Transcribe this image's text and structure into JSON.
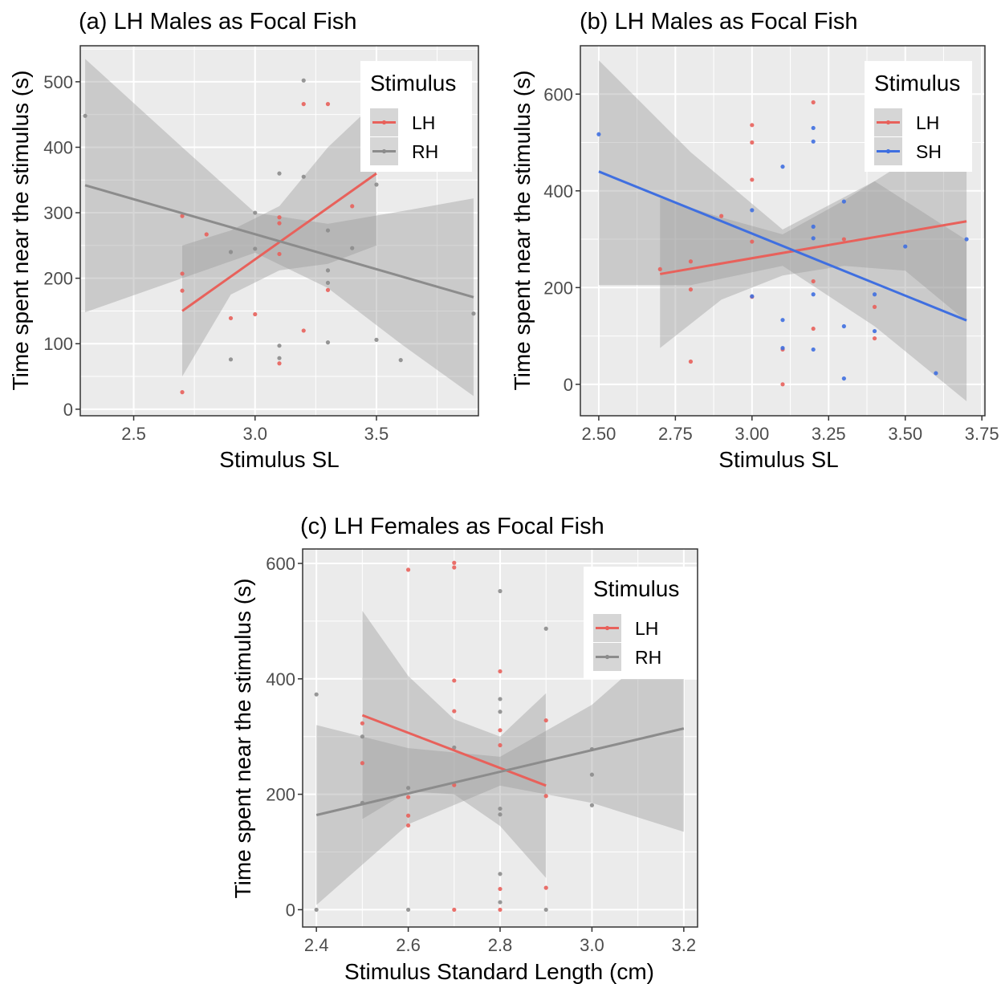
{
  "colors": {
    "LH": "#e8615b",
    "RH": "#8c8c8c",
    "SH": "#3f6fe0",
    "ribbon": "#999999",
    "panel": "#ebebeb"
  },
  "chart_data": [
    {
      "type": "scatter",
      "title": "(a) LH Males as Focal Fish",
      "xlabel": "Stimulus SL",
      "ylabel": "Time spent near the stimulus (s)",
      "xlim": [
        2.28,
        3.92
      ],
      "ylim": [
        -10,
        555
      ],
      "xticks": [
        2.5,
        3.0,
        3.5
      ],
      "xtick_labels": [
        "2.5",
        "3.0",
        "3.5"
      ],
      "yticks": [
        0,
        100,
        200,
        300,
        400,
        500
      ],
      "ytick_labels": [
        "0",
        "100",
        "200",
        "300",
        "400",
        "500"
      ],
      "legend": {
        "title": "Stimulus",
        "position": "top-right",
        "entries": [
          "LH",
          "RH"
        ]
      },
      "series": [
        {
          "name": "LH",
          "color_key": "LH",
          "points": [
            [
              2.7,
              295
            ],
            [
              2.7,
              207
            ],
            [
              2.7,
              181
            ],
            [
              2.7,
              26
            ],
            [
              2.8,
              267
            ],
            [
              2.9,
              139
            ],
            [
              3.0,
              145
            ],
            [
              3.1,
              293
            ],
            [
              3.1,
              284
            ],
            [
              3.1,
              237
            ],
            [
              3.1,
              70
            ],
            [
              3.2,
              466
            ],
            [
              3.2,
              120
            ],
            [
              3.3,
              466
            ],
            [
              3.3,
              182
            ],
            [
              3.4,
              310
            ]
          ],
          "fit": [
            [
              2.7,
              150
            ],
            [
              3.5,
              360
            ]
          ],
          "ribbon_upper": [
            [
              2.7,
              250
            ],
            [
              2.9,
              273
            ],
            [
              3.1,
              310
            ],
            [
              3.3,
              400
            ],
            [
              3.5,
              470
            ]
          ],
          "ribbon_lower": [
            [
              2.7,
              50
            ],
            [
              2.9,
              175
            ],
            [
              3.1,
              212
            ],
            [
              3.3,
              222
            ],
            [
              3.5,
              250
            ]
          ]
        },
        {
          "name": "RH",
          "color_key": "RH",
          "points": [
            [
              2.3,
              448
            ],
            [
              2.9,
              240
            ],
            [
              2.9,
              76
            ],
            [
              3.0,
              300
            ],
            [
              3.0,
              245
            ],
            [
              3.1,
              360
            ],
            [
              3.1,
              97
            ],
            [
              3.1,
              78
            ],
            [
              3.2,
              502
            ],
            [
              3.2,
              355
            ],
            [
              3.3,
              273
            ],
            [
              3.3,
              212
            ],
            [
              3.3,
              193
            ],
            [
              3.3,
              102
            ],
            [
              3.4,
              246
            ],
            [
              3.5,
              343
            ],
            [
              3.5,
              106
            ],
            [
              3.6,
              75
            ],
            [
              3.9,
              146
            ]
          ],
          "fit": [
            [
              2.3,
              342
            ],
            [
              3.9,
              171
            ]
          ],
          "ribbon_upper": [
            [
              2.3,
              535
            ],
            [
              2.7,
              400
            ],
            [
              3.0,
              300
            ],
            [
              3.3,
              283
            ],
            [
              3.6,
              302
            ],
            [
              3.9,
              322
            ]
          ],
          "ribbon_lower": [
            [
              2.3,
              148
            ],
            [
              2.7,
              200
            ],
            [
              3.0,
              239
            ],
            [
              3.3,
              185
            ],
            [
              3.6,
              100
            ],
            [
              3.9,
              20
            ]
          ]
        }
      ]
    },
    {
      "type": "scatter",
      "title": "(b) LH Males as Focal Fish",
      "xlabel": "Stimulus SL",
      "ylabel": "Time spent near the stimulus (s)",
      "xlim": [
        2.44,
        3.76
      ],
      "ylim": [
        -65,
        700
      ],
      "xticks": [
        2.5,
        2.75,
        3.0,
        3.25,
        3.5,
        3.75
      ],
      "xtick_labels": [
        "2.50",
        "2.75",
        "3.00",
        "3.25",
        "3.50",
        "3.75"
      ],
      "yticks": [
        0,
        200,
        400,
        600
      ],
      "ytick_labels": [
        "0",
        "200",
        "400",
        "600"
      ],
      "legend": {
        "title": "Stimulus",
        "position": "top-right",
        "entries": [
          "LH",
          "SH"
        ]
      },
      "series": [
        {
          "name": "LH",
          "color_key": "LH",
          "points": [
            [
              2.7,
              238
            ],
            [
              2.8,
              254
            ],
            [
              2.8,
              196
            ],
            [
              2.8,
              47
            ],
            [
              2.9,
              348
            ],
            [
              3.0,
              536
            ],
            [
              3.0,
              500
            ],
            [
              3.0,
              423
            ],
            [
              3.0,
              295
            ],
            [
              3.0,
              181
            ],
            [
              3.1,
              72
            ],
            [
              3.1,
              0
            ],
            [
              3.2,
              583
            ],
            [
              3.2,
              213
            ],
            [
              3.2,
              115
            ],
            [
              3.3,
              300
            ],
            [
              3.4,
              160
            ],
            [
              3.4,
              95
            ]
          ],
          "fit": [
            [
              2.7,
              228
            ],
            [
              3.7,
              337
            ]
          ],
          "ribbon_upper": [
            [
              2.7,
              385
            ],
            [
              2.9,
              345
            ],
            [
              3.1,
              310
            ],
            [
              3.3,
              380
            ],
            [
              3.5,
              460
            ],
            [
              3.7,
              540
            ]
          ],
          "ribbon_lower": [
            [
              2.7,
              75
            ],
            [
              2.9,
              175
            ],
            [
              3.1,
              225
            ],
            [
              3.3,
              245
            ],
            [
              3.5,
              235
            ],
            [
              3.7,
              130
            ]
          ]
        },
        {
          "name": "SH",
          "color_key": "SH",
          "points": [
            [
              2.5,
              517
            ],
            [
              3.0,
              360
            ],
            [
              3.0,
              182
            ],
            [
              3.1,
              450
            ],
            [
              3.1,
              133
            ],
            [
              3.1,
              75
            ],
            [
              3.2,
              530
            ],
            [
              3.2,
              502
            ],
            [
              3.2,
              326
            ],
            [
              3.2,
              302
            ],
            [
              3.2,
              186
            ],
            [
              3.2,
              72
            ],
            [
              3.3,
              378
            ],
            [
              3.3,
              120
            ],
            [
              3.3,
              12
            ],
            [
              3.4,
              186
            ],
            [
              3.4,
              110
            ],
            [
              3.5,
              285
            ],
            [
              3.6,
              23
            ],
            [
              3.7,
              300
            ]
          ],
          "fit": [
            [
              2.5,
              440
            ],
            [
              3.7,
              132
            ]
          ],
          "ribbon_upper": [
            [
              2.5,
              670
            ],
            [
              2.8,
              480
            ],
            [
              3.1,
              320
            ],
            [
              3.4,
              420
            ],
            [
              3.7,
              298
            ]
          ],
          "ribbon_lower": [
            [
              2.5,
              205
            ],
            [
              2.8,
              205
            ],
            [
              3.1,
              245
            ],
            [
              3.4,
              120
            ],
            [
              3.7,
              -35
            ]
          ]
        }
      ]
    },
    {
      "type": "scatter",
      "title": "(c) LH Females as Focal Fish",
      "xlabel": "Stimulus Standard Length (cm)",
      "ylabel": "Time spent near the stimulus (s)",
      "xlim": [
        2.37,
        3.23
      ],
      "ylim": [
        -30,
        625
      ],
      "xticks": [
        2.4,
        2.6,
        2.8,
        3.0,
        3.2
      ],
      "xtick_labels": [
        "2.4",
        "2.6",
        "2.8",
        "3.0",
        "3.2"
      ],
      "yticks": [
        0,
        200,
        400,
        600
      ],
      "ytick_labels": [
        "0",
        "200",
        "400",
        "600"
      ],
      "legend": {
        "title": "Stimulus",
        "position": "top-right",
        "entries": [
          "LH",
          "RH"
        ]
      },
      "series": [
        {
          "name": "LH",
          "color_key": "LH",
          "points": [
            [
              2.5,
              323
            ],
            [
              2.5,
              254
            ],
            [
              2.6,
              589
            ],
            [
              2.6,
              195
            ],
            [
              2.6,
              163
            ],
            [
              2.6,
              146
            ],
            [
              2.7,
              601
            ],
            [
              2.7,
              593
            ],
            [
              2.7,
              397
            ],
            [
              2.7,
              344
            ],
            [
              2.7,
              216
            ],
            [
              2.7,
              0
            ],
            [
              2.8,
              413
            ],
            [
              2.8,
              311
            ],
            [
              2.8,
              285
            ],
            [
              2.8,
              36
            ],
            [
              2.8,
              0
            ],
            [
              2.9,
              328
            ],
            [
              2.9,
              197
            ],
            [
              2.9,
              38
            ]
          ],
          "fit": [
            [
              2.5,
              337
            ],
            [
              2.9,
              215
            ]
          ],
          "ribbon_upper": [
            [
              2.5,
              518
            ],
            [
              2.6,
              405
            ],
            [
              2.7,
              330
            ],
            [
              2.8,
              300
            ],
            [
              2.9,
              375
            ]
          ],
          "ribbon_lower": [
            [
              2.5,
              157
            ],
            [
              2.6,
              205
            ],
            [
              2.7,
              200
            ],
            [
              2.8,
              145
            ],
            [
              2.9,
              55
            ]
          ]
        },
        {
          "name": "RH",
          "color_key": "RH",
          "points": [
            [
              2.4,
              373
            ],
            [
              2.4,
              0
            ],
            [
              2.5,
              300
            ],
            [
              2.5,
              185
            ],
            [
              2.6,
              211
            ],
            [
              2.6,
              0
            ],
            [
              2.7,
              281
            ],
            [
              2.8,
              552
            ],
            [
              2.8,
              365
            ],
            [
              2.8,
              343
            ],
            [
              2.8,
              175
            ],
            [
              2.8,
              165
            ],
            [
              2.8,
              62
            ],
            [
              2.8,
              13
            ],
            [
              2.9,
              487
            ],
            [
              2.9,
              0
            ],
            [
              3.0,
              278
            ],
            [
              3.0,
              234
            ],
            [
              3.0,
              181
            ]
          ],
          "fit": [
            [
              2.4,
              164
            ],
            [
              3.2,
              314
            ]
          ],
          "ribbon_upper": [
            [
              2.4,
              320
            ],
            [
              2.6,
              280
            ],
            [
              2.8,
              265
            ],
            [
              3.0,
              355
            ],
            [
              3.2,
              495
            ]
          ],
          "ribbon_lower": [
            [
              2.4,
              8
            ],
            [
              2.6,
              148
            ],
            [
              2.8,
              215
            ],
            [
              3.0,
              185
            ],
            [
              3.2,
              135
            ]
          ]
        }
      ]
    }
  ]
}
